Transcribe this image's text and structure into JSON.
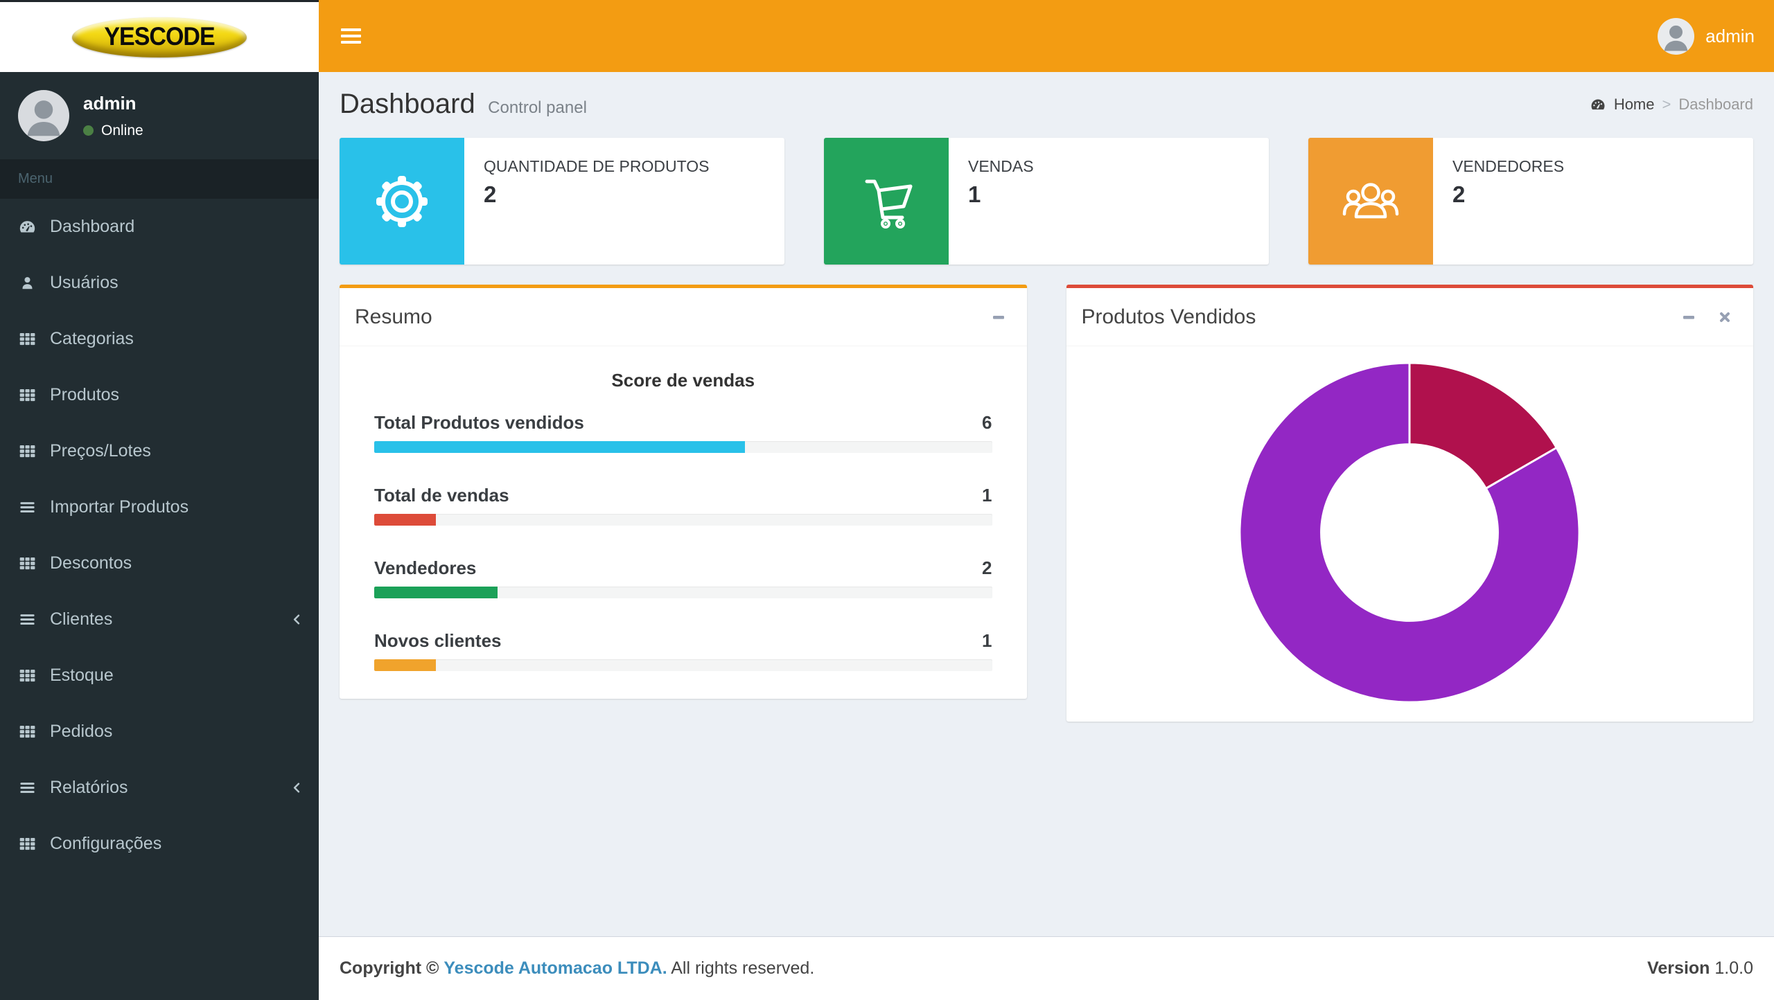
{
  "logo": {
    "text": "YESCODE"
  },
  "navbar": {
    "user": "admin"
  },
  "sidebar": {
    "user": {
      "name": "admin",
      "status": "Online"
    },
    "section_label": "Menu",
    "menu": [
      {
        "label": "Dashboard",
        "icon": "tachometer"
      },
      {
        "label": "Usuários",
        "icon": "user"
      },
      {
        "label": "Categorias",
        "icon": "grid"
      },
      {
        "label": "Produtos",
        "icon": "grid"
      },
      {
        "label": "Preços/Lotes",
        "icon": "grid"
      },
      {
        "label": "Importar Produtos",
        "icon": "bars"
      },
      {
        "label": "Descontos",
        "icon": "grid"
      },
      {
        "label": "Clientes",
        "icon": "bars",
        "has_submenu": true
      },
      {
        "label": "Estoque",
        "icon": "grid"
      },
      {
        "label": "Pedidos",
        "icon": "grid"
      },
      {
        "label": "Relatórios",
        "icon": "bars",
        "has_submenu": true
      },
      {
        "label": "Configurações",
        "icon": "grid"
      }
    ]
  },
  "header": {
    "title": "Dashboard",
    "subtitle": "Control panel",
    "breadcrumb": {
      "home": "Home",
      "current": "Dashboard"
    }
  },
  "info_boxes": [
    {
      "label": "QUANTIDADE DE PRODUTOS",
      "value": "2",
      "color": "#29c1e9",
      "icon": "gear-icon"
    },
    {
      "label": "VENDAS",
      "value": "1",
      "color": "#23a45c",
      "icon": "cart-icon"
    },
    {
      "label": "VENDEDORES",
      "value": "2",
      "color": "#f09c32",
      "icon": "people-icon"
    }
  ],
  "resumo": {
    "title": "Resumo",
    "subtitle": "Score de vendas",
    "items": [
      {
        "label": "Total Produtos vendidos",
        "value": "6",
        "percent": 60,
        "color": "#29c1e9"
      },
      {
        "label": "Total de vendas",
        "value": "1",
        "percent": 10,
        "color": "#dd4b39"
      },
      {
        "label": "Vendedores",
        "value": "2",
        "percent": 20,
        "color": "#1ba158"
      },
      {
        "label": "Novos clientes",
        "value": "1",
        "percent": 10,
        "color": "#f0a32c"
      }
    ]
  },
  "chart_panel": {
    "title": "Produtos Vendidos"
  },
  "chart_data": {
    "type": "doughnut",
    "title": "Produtos Vendidos",
    "values": [
      1,
      5
    ],
    "percentages": [
      16.7,
      83.3
    ],
    "colors": [
      "#b0114d",
      "#9327c4"
    ],
    "cutout_ratio": 0.52,
    "start_angle_deg": 0,
    "legend": "none"
  },
  "footer": {
    "copyright_prefix": "Copyright ©",
    "company": "Yescode Automacao LTDA.",
    "rights": "All rights reserved.",
    "version_label": "Version",
    "version": "1.0.0"
  }
}
